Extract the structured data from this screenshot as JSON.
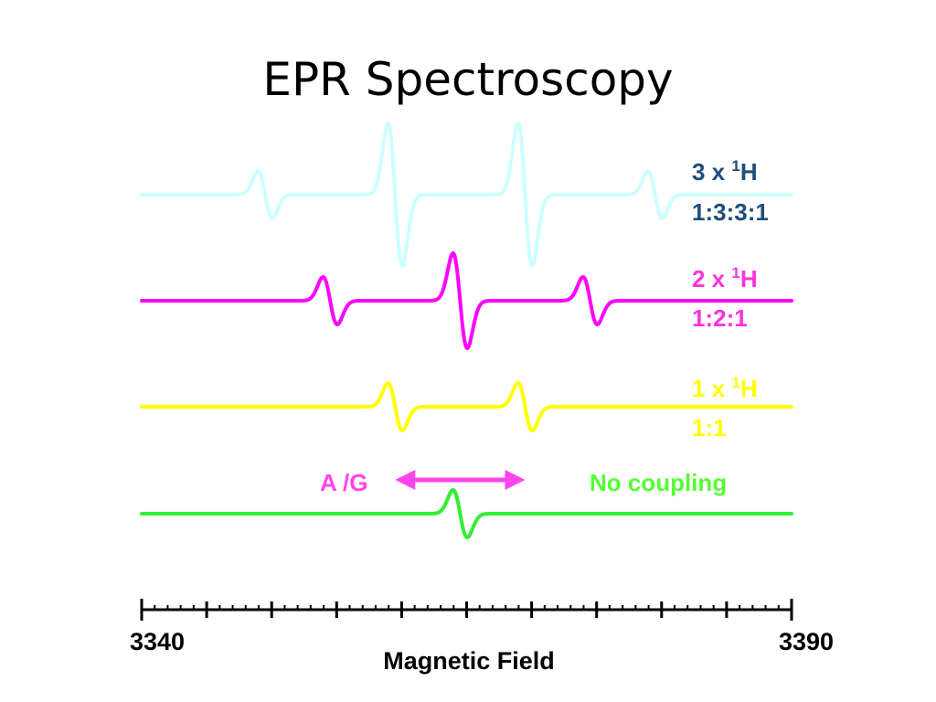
{
  "slide": {
    "title": "EPR Spectroscopy"
  },
  "chart_data": {
    "type": "line",
    "title": "EPR Spectroscopy",
    "xlabel": "Magnetic Field",
    "ylabel": "",
    "xlim": [
      3340,
      3390
    ],
    "x_tick_labels": [
      "3340",
      "3390"
    ],
    "x_major_ticks": [
      3340,
      3345,
      3350,
      3355,
      3360,
      3365,
      3370,
      3375,
      3380,
      3385,
      3390
    ],
    "x_minor_step": 1,
    "grid": false,
    "series": [
      {
        "name": "3 x 1H",
        "label_main": "3 x ",
        "label_sup": "1",
        "label_end": "H",
        "ratio": "1:3:3:1",
        "color": "#ccffff",
        "line_positions": [
          3349.5,
          3359.5,
          3369.5,
          3379.5
        ],
        "intensities": [
          1,
          3,
          3,
          1
        ]
      },
      {
        "name": "2 x 1H",
        "label_main": "2 x ",
        "label_sup": "1",
        "label_end": "H",
        "ratio": "1:2:1",
        "color": "#ff00ff",
        "line_positions": [
          3354.5,
          3364.5,
          3374.5
        ],
        "intensities": [
          1,
          2,
          1
        ]
      },
      {
        "name": "1 x 1H",
        "label_main": "1 x ",
        "label_sup": "1",
        "label_end": "H",
        "ratio": "1:1",
        "color": "#ffff00",
        "line_positions": [
          3359.5,
          3369.5
        ],
        "intensities": [
          1,
          1
        ]
      },
      {
        "name": "No coupling",
        "label_main": "No coupling",
        "label_sup": "",
        "label_end": "",
        "ratio": "",
        "color": "#33ee33",
        "line_positions": [
          3364.5
        ],
        "intensities": [
          1
        ]
      }
    ],
    "annotations": [
      {
        "text": "A /G",
        "color": "#ff44ee",
        "arrow_from_x": 3359.5,
        "arrow_to_x": 3369.5
      }
    ]
  }
}
